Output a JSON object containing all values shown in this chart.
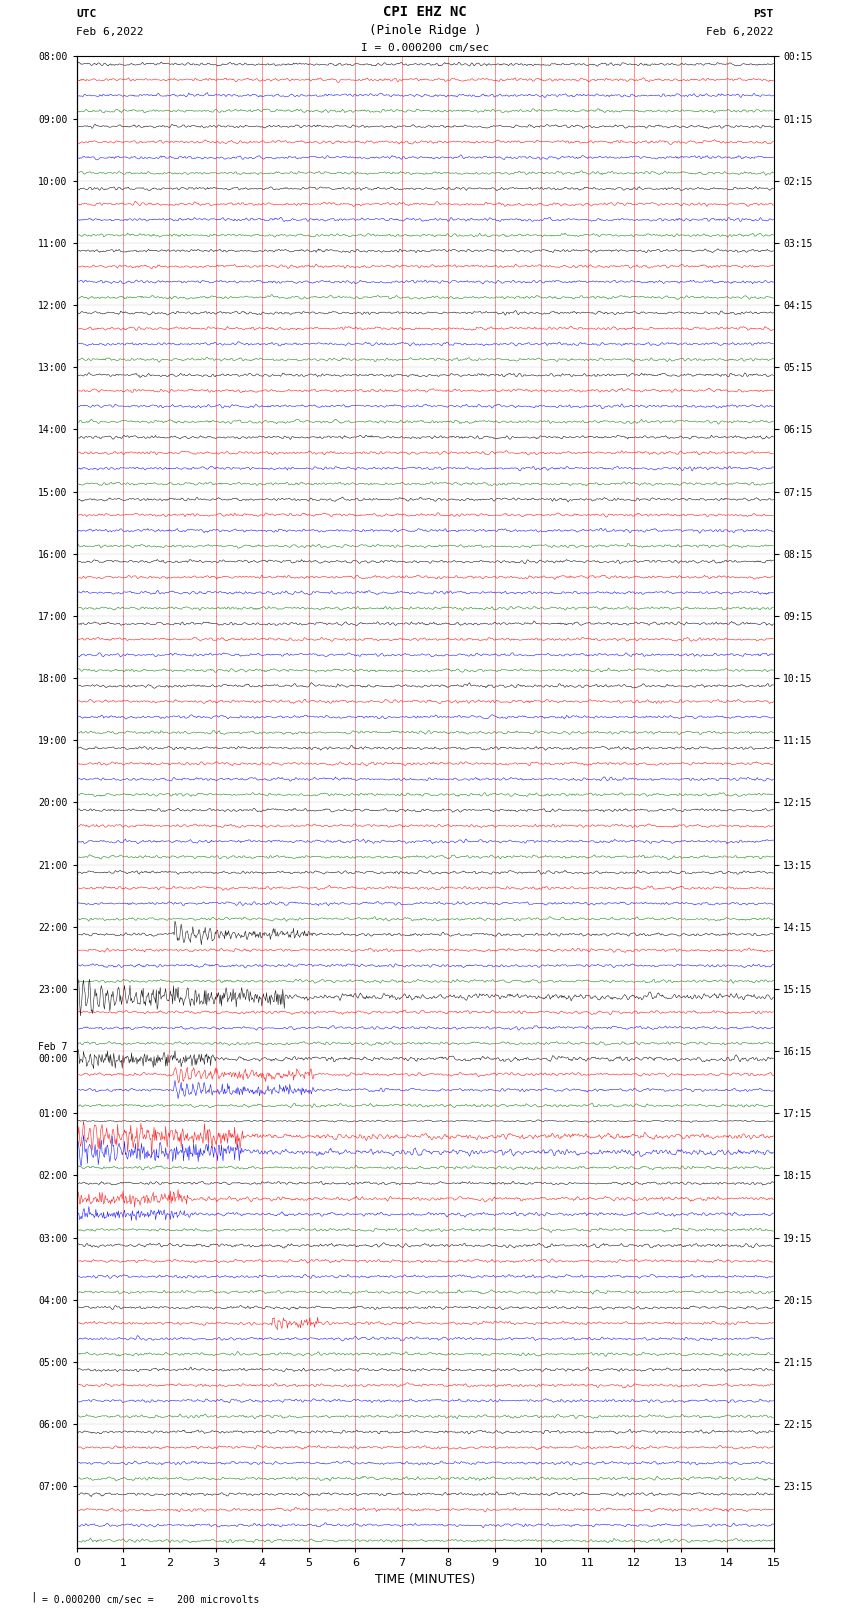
{
  "title_line1": "CPI EHZ NC",
  "title_line2": "(Pinole Ridge )",
  "scale_text": "I = 0.000200 cm/sec",
  "left_label_top": "UTC",
  "left_label_bot": "Feb 6,2022",
  "right_label_top": "PST",
  "right_label_bot": "Feb 6,2022",
  "bottom_label": "TIME (MINUTES)",
  "bottom_note": "= 0.000200 cm/sec =    200 microvolts",
  "utc_times": [
    "08:00",
    "09:00",
    "10:00",
    "11:00",
    "12:00",
    "13:00",
    "14:00",
    "15:00",
    "16:00",
    "17:00",
    "18:00",
    "19:00",
    "20:00",
    "21:00",
    "22:00",
    "23:00",
    "Feb 7\n00:00",
    "01:00",
    "02:00",
    "03:00",
    "04:00",
    "05:00",
    "06:00",
    "07:00"
  ],
  "pst_times": [
    "00:15",
    "01:15",
    "02:15",
    "03:15",
    "04:15",
    "05:15",
    "06:15",
    "07:15",
    "08:15",
    "09:15",
    "10:15",
    "11:15",
    "12:15",
    "13:15",
    "14:15",
    "15:15",
    "16:15",
    "17:15",
    "18:15",
    "19:15",
    "20:15",
    "21:15",
    "22:15",
    "23:15"
  ],
  "num_rows": 24,
  "minutes_per_row": 15,
  "bg_color": "#ffffff",
  "trace_colors": [
    "#000000",
    "#ff0000",
    "#0000ff",
    "#008000"
  ],
  "grid_color": "#ff0000",
  "noise_amplitude": 0.08,
  "earthquake_row_black": 14,
  "earthquake_row_red": 16,
  "earthquake_row_blue": 16,
  "earthquake_minute": 2.1,
  "eq_amplitude": 0.9,
  "eq_duration_minutes": 3.0,
  "aftershock_row": 20,
  "aftershock_minute": 4.2,
  "aftershock_amp": 0.35
}
